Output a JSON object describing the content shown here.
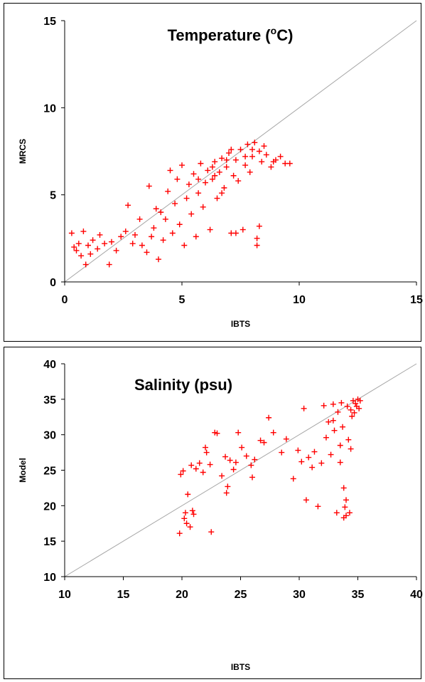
{
  "chart_data": [
    {
      "type": "scatter",
      "title": "Temperature (",
      "title_sup": "o",
      "title_suffix": "C)",
      "xlabel": "IBTS",
      "ylabel": "MRCS",
      "xlim": [
        0,
        15
      ],
      "ylim": [
        0,
        15
      ],
      "xticks": [
        0,
        5,
        10,
        15
      ],
      "yticks": [
        0,
        5,
        10,
        15
      ],
      "reference_line": "y = x",
      "grid": false,
      "marker": "+",
      "marker_color": "#ff0000",
      "line_color": "#a6a6a6",
      "points": [
        [
          0.3,
          2.8
        ],
        [
          0.4,
          2.0
        ],
        [
          0.5,
          1.8
        ],
        [
          0.6,
          2.2
        ],
        [
          0.7,
          1.5
        ],
        [
          0.8,
          2.9
        ],
        [
          0.9,
          1.0
        ],
        [
          1.0,
          2.1
        ],
        [
          1.1,
          1.6
        ],
        [
          1.2,
          2.4
        ],
        [
          1.4,
          1.9
        ],
        [
          1.5,
          2.7
        ],
        [
          1.7,
          2.2
        ],
        [
          1.9,
          1.0
        ],
        [
          2.0,
          2.3
        ],
        [
          2.2,
          1.8
        ],
        [
          2.4,
          2.6
        ],
        [
          2.6,
          2.9
        ],
        [
          2.7,
          4.4
        ],
        [
          2.9,
          2.2
        ],
        [
          3.0,
          2.7
        ],
        [
          3.2,
          3.6
        ],
        [
          3.3,
          2.1
        ],
        [
          3.5,
          1.7
        ],
        [
          3.6,
          5.5
        ],
        [
          3.7,
          2.6
        ],
        [
          3.8,
          3.1
        ],
        [
          3.9,
          4.2
        ],
        [
          4.0,
          1.3
        ],
        [
          4.1,
          4.0
        ],
        [
          4.2,
          2.4
        ],
        [
          4.3,
          3.6
        ],
        [
          4.4,
          5.2
        ],
        [
          4.5,
          6.4
        ],
        [
          4.6,
          2.8
        ],
        [
          4.7,
          4.5
        ],
        [
          4.8,
          5.9
        ],
        [
          4.9,
          3.3
        ],
        [
          5.0,
          6.7
        ],
        [
          5.1,
          2.1
        ],
        [
          5.2,
          4.8
        ],
        [
          5.3,
          5.6
        ],
        [
          5.4,
          3.9
        ],
        [
          5.5,
          6.2
        ],
        [
          5.6,
          2.6
        ],
        [
          5.7,
          5.1
        ],
        [
          5.8,
          6.8
        ],
        [
          5.9,
          4.3
        ],
        [
          6.0,
          5.7
        ],
        [
          6.1,
          6.4
        ],
        [
          6.2,
          3.0
        ],
        [
          6.3,
          5.9
        ],
        [
          6.4,
          6.9
        ],
        [
          6.5,
          4.8
        ],
        [
          6.6,
          6.3
        ],
        [
          6.7,
          7.1
        ],
        [
          6.8,
          5.4
        ],
        [
          6.9,
          6.6
        ],
        [
          7.0,
          7.4
        ],
        [
          7.1,
          2.8
        ],
        [
          7.2,
          6.1
        ],
        [
          7.3,
          7.0
        ],
        [
          7.4,
          5.8
        ],
        [
          7.5,
          7.6
        ],
        [
          7.6,
          3.0
        ],
        [
          7.7,
          6.7
        ],
        [
          7.8,
          7.9
        ],
        [
          7.9,
          6.3
        ],
        [
          8.0,
          7.2
        ],
        [
          8.1,
          8.0
        ],
        [
          8.2,
          2.5
        ],
        [
          8.3,
          7.5
        ],
        [
          8.4,
          6.9
        ],
        [
          8.5,
          7.8
        ],
        [
          8.6,
          7.3
        ],
        [
          8.8,
          6.6
        ],
        [
          8.9,
          6.9
        ],
        [
          9.0,
          7.0
        ],
        [
          9.2,
          7.2
        ],
        [
          9.4,
          6.8
        ],
        [
          9.6,
          6.8
        ],
        [
          8.2,
          2.1
        ],
        [
          7.3,
          2.8
        ],
        [
          8.3,
          3.2
        ],
        [
          6.7,
          5.1
        ],
        [
          6.3,
          6.6
        ],
        [
          7.1,
          7.6
        ],
        [
          7.7,
          7.2
        ],
        [
          8.0,
          7.6
        ],
        [
          5.7,
          5.9
        ],
        [
          6.4,
          6.1
        ],
        [
          6.9,
          7.0
        ]
      ]
    },
    {
      "type": "scatter",
      "title": "Salinity (psu)",
      "xlabel": "IBTS",
      "ylabel": "Model",
      "xlim": [
        10,
        40
      ],
      "ylim": [
        10,
        40
      ],
      "xticks": [
        10,
        15,
        20,
        25,
        30,
        35,
        40
      ],
      "yticks": [
        10,
        15,
        20,
        25,
        30,
        35,
        40
      ],
      "reference_line": "y = x",
      "grid": false,
      "marker": "+",
      "marker_color": "#ff0000",
      "line_color": "#a6a6a6",
      "points": [
        [
          19.8,
          16.1
        ],
        [
          19.9,
          24.4
        ],
        [
          20.1,
          24.9
        ],
        [
          20.2,
          18.2
        ],
        [
          20.3,
          19.0
        ],
        [
          20.4,
          17.5
        ],
        [
          20.5,
          21.6
        ],
        [
          20.7,
          17.0
        ],
        [
          20.8,
          25.7
        ],
        [
          20.9,
          19.3
        ],
        [
          21.0,
          18.8
        ],
        [
          21.2,
          25.2
        ],
        [
          21.5,
          26.0
        ],
        [
          21.8,
          24.7
        ],
        [
          22.0,
          28.2
        ],
        [
          22.1,
          27.5
        ],
        [
          22.4,
          25.8
        ],
        [
          22.5,
          16.3
        ],
        [
          22.8,
          30.3
        ],
        [
          23.0,
          30.2
        ],
        [
          23.4,
          24.2
        ],
        [
          23.7,
          26.9
        ],
        [
          23.8,
          21.8
        ],
        [
          23.9,
          22.7
        ],
        [
          24.1,
          26.4
        ],
        [
          24.4,
          25.1
        ],
        [
          24.6,
          26.1
        ],
        [
          24.8,
          30.3
        ],
        [
          25.1,
          28.2
        ],
        [
          25.5,
          27.0
        ],
        [
          25.9,
          25.7
        ],
        [
          26.0,
          24.0
        ],
        [
          26.2,
          26.5
        ],
        [
          26.7,
          29.2
        ],
        [
          27.0,
          28.9
        ],
        [
          27.4,
          32.4
        ],
        [
          27.8,
          30.3
        ],
        [
          28.5,
          27.5
        ],
        [
          28.9,
          29.4
        ],
        [
          29.5,
          23.8
        ],
        [
          29.9,
          27.8
        ],
        [
          30.2,
          26.2
        ],
        [
          30.4,
          33.7
        ],
        [
          30.6,
          20.8
        ],
        [
          30.8,
          26.8
        ],
        [
          31.1,
          25.4
        ],
        [
          31.3,
          27.6
        ],
        [
          31.6,
          19.9
        ],
        [
          31.9,
          26.0
        ],
        [
          32.1,
          34.1
        ],
        [
          32.3,
          29.6
        ],
        [
          32.5,
          31.8
        ],
        [
          32.7,
          27.2
        ],
        [
          32.9,
          34.3
        ],
        [
          33.0,
          30.6
        ],
        [
          33.2,
          19.0
        ],
        [
          33.3,
          33.2
        ],
        [
          33.5,
          28.5
        ],
        [
          33.6,
          34.5
        ],
        [
          33.7,
          31.1
        ],
        [
          33.8,
          22.5
        ],
        [
          33.9,
          19.8
        ],
        [
          34.0,
          20.8
        ],
        [
          34.1,
          34.0
        ],
        [
          34.2,
          29.3
        ],
        [
          34.3,
          19.0
        ],
        [
          34.4,
          33.5
        ],
        [
          34.5,
          32.6
        ],
        [
          34.6,
          34.8
        ],
        [
          34.7,
          33.1
        ],
        [
          34.8,
          34.4
        ],
        [
          34.9,
          34.0
        ],
        [
          35.0,
          35.0
        ],
        [
          35.1,
          33.7
        ],
        [
          35.2,
          34.8
        ],
        [
          33.8,
          18.3
        ],
        [
          34.0,
          18.6
        ],
        [
          34.4,
          28.0
        ],
        [
          33.5,
          26.1
        ],
        [
          32.9,
          32.0
        ]
      ]
    }
  ]
}
